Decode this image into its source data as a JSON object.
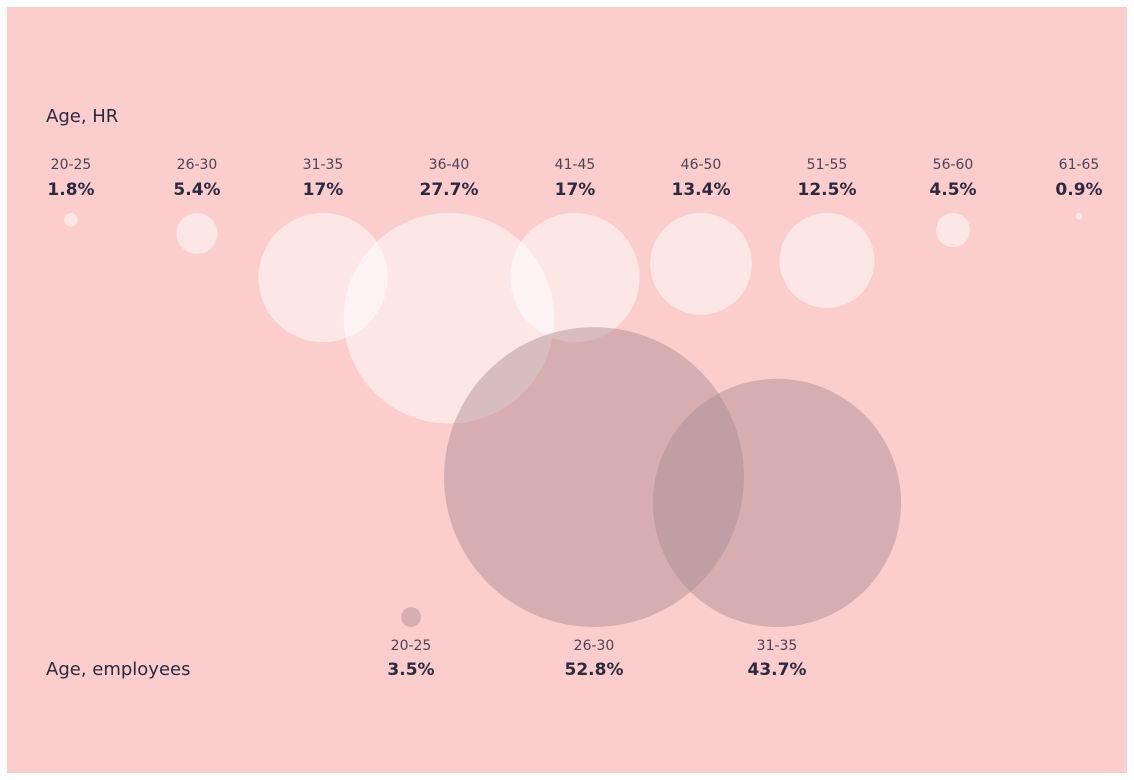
{
  "chart_data": [
    {
      "type": "bubble",
      "title": "Age, HR",
      "color": "#ffffff",
      "categories": [
        "20-25",
        "26-30",
        "31-35",
        "36-40",
        "41-45",
        "46-50",
        "51-55",
        "56-60",
        "61-65"
      ],
      "values": [
        1.8,
        5.4,
        17,
        27.7,
        17,
        13.4,
        12.5,
        4.5,
        0.9
      ],
      "value_labels": [
        "1.8%",
        "5.4%",
        "17%",
        "27.7%",
        "17%",
        "13.4%",
        "12.5%",
        "4.5%",
        "0.9%"
      ]
    },
    {
      "type": "bubble",
      "title": "Age, employees",
      "color": "#a88a92",
      "categories": [
        "20-25",
        "26-30",
        "31-35"
      ],
      "values": [
        3.5,
        52.8,
        43.7
      ],
      "value_labels": [
        "3.5%",
        "52.8%",
        "43.7%"
      ]
    }
  ]
}
